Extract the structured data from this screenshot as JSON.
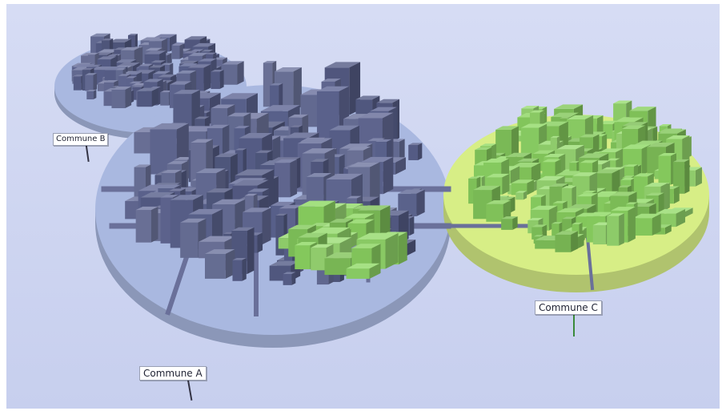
{
  "labels": {
    "commune_a": "Commune A",
    "commune_b": "Commune B",
    "commune_c": "Commune C"
  },
  "colors": {
    "background": "#c9d1ef",
    "district_ab": "#a9b8e0",
    "district_c": "#d7ee86",
    "building_blue": "#5f6795",
    "building_green": "#8fd964",
    "pole_dark": "#333344",
    "pole_green": "#3a8a3a"
  }
}
